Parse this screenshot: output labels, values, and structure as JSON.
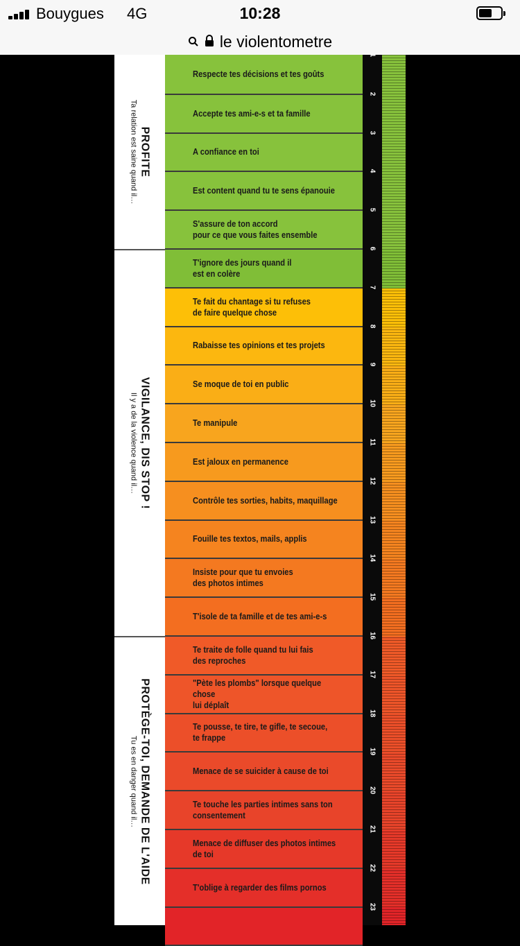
{
  "status": {
    "carrier": "Bouygues",
    "network": "4G",
    "time": "10:28"
  },
  "url": {
    "search_icon": "search-icon",
    "lock_icon": "lock-icon",
    "text": "le violentometre"
  },
  "sections": [
    {
      "title": "PROFITE",
      "subtitle": "Ta relation est saine quand il…",
      "color": "#8cc63f"
    },
    {
      "title": "VIGILANCE, DIS STOP !",
      "subtitle": "Il y a de la violence quand il…",
      "color": "#f7a51c"
    },
    {
      "title": "PROTÈGE-TOI, DEMANDE DE L'AIDE",
      "subtitle": "Tu es en danger quand il…",
      "color": "#e8452a"
    }
  ],
  "items": [
    "Respecte tes décisions et tes goûts",
    "Accepte tes ami-e-s et ta famille",
    "A confiance en toi",
    "Est content quand tu te sens épanouie",
    "S'assure de ton accord\npour ce que vous faites ensemble",
    "T'ignore des jours quand il\nest en colère",
    "Te fait du chantage si tu refuses\nde faire quelque chose",
    "Rabaisse tes opinions et tes projets",
    "Se moque de toi en public",
    "Te manipule",
    "Est jaloux en permanence",
    "Contrôle tes sorties, habits, maquillage",
    "Fouille tes textos, mails, applis",
    "Insiste pour que tu envoies\ndes photos intimes",
    "T'isole de ta famille et de tes ami-e-s",
    "Te traite de folle quand tu lui fais\ndes reproches",
    "\"Pète les plombs\" lorsque quelque chose\nlui déplaît",
    "Te pousse, te tire, te gifle, te secoue,\nte frappe",
    "Menace de se suicider à cause de toi",
    "Te touche les parties intimes sans ton\nconsentement",
    "Menace de diffuser des photos intimes\nde toi",
    "T'oblige à regarder des films pornos",
    ""
  ],
  "numbers": [
    "1",
    "2",
    "3",
    "4",
    "5",
    "6",
    "7",
    "8",
    "9",
    "10",
    "11",
    "12",
    "13",
    "14",
    "15",
    "16",
    "17",
    "18",
    "19",
    "20",
    "21",
    "22",
    "23"
  ]
}
